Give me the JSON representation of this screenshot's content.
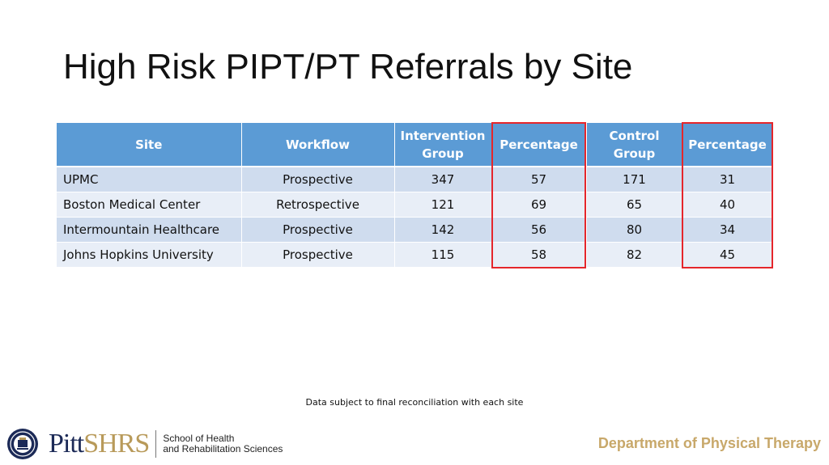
{
  "slide": {
    "title": "High Risk PIPT/PT Referrals by Site",
    "note": "Data subject to final reconciliation with each site",
    "department": "Department of Physical Therapy"
  },
  "table": {
    "headers": [
      "Site",
      "Workflow",
      "Intervention Group",
      "Percentage",
      "Control Group",
      "Percentage"
    ],
    "rows": [
      [
        "UPMC",
        "Prospective",
        "347",
        "57",
        "171",
        "31"
      ],
      [
        "Boston Medical Center",
        "Retrospective",
        "121",
        "69",
        "65",
        "40"
      ],
      [
        "Intermountain Healthcare",
        "Prospective",
        "142",
        "56",
        "80",
        "34"
      ],
      [
        "Johns Hopkins University",
        "Prospective",
        "115",
        "58",
        "82",
        "45"
      ]
    ]
  },
  "highlight_color": "#e5262b",
  "logo": {
    "wordmark_pitt": "Pitt",
    "wordmark_shrs": "SHRS",
    "school_line1": "School of Health",
    "school_line2": "and Rehabilitation Sciences"
  }
}
